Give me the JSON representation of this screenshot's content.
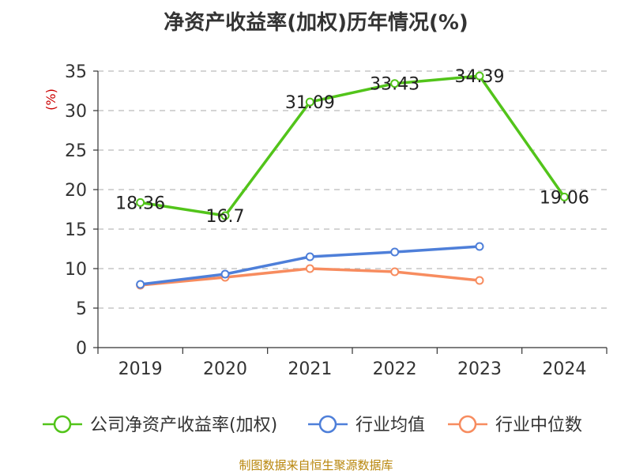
{
  "title": "净资产收益率(加权)历年情况(%)",
  "source": "制图数据来自恒生聚源数据库",
  "chart_data": {
    "type": "line",
    "title": "净资产收益率(加权)历年情况(%)",
    "ylabel": "(%)",
    "xlabel": "",
    "categories": [
      "2019",
      "2020",
      "2021",
      "2022",
      "2023",
      "2024"
    ],
    "ylim": [
      0,
      35
    ],
    "yticks": [
      0,
      5,
      10,
      15,
      20,
      25,
      30,
      35
    ],
    "grid": true,
    "legend_position": "bottom",
    "series": [
      {
        "name": "公司净资产收益率(加权)",
        "color": "#52c41a",
        "values": [
          18.36,
          16.7,
          31.09,
          33.43,
          34.39,
          19.06
        ],
        "labels": [
          "18.36",
          "16.7",
          "31.09",
          "33.43",
          "34.39",
          "19.06"
        ]
      },
      {
        "name": "行业均值",
        "color": "#4e7fd9",
        "values": [
          8.0,
          9.3,
          11.5,
          12.1,
          12.8,
          null
        ]
      },
      {
        "name": "行业中位数",
        "color": "#f78c5f",
        "values": [
          7.9,
          8.9,
          10.0,
          9.6,
          8.5,
          null
        ]
      }
    ]
  }
}
